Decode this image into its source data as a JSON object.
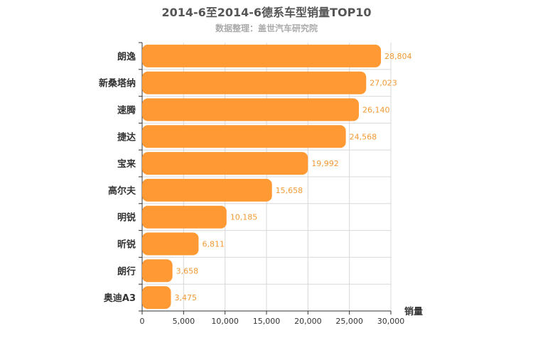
{
  "title": "2014-6至2014-6德系车型销量TOP10",
  "subtitle": "数据整理：盖世汽车研究院",
  "chart_data": {
    "type": "bar",
    "orientation": "horizontal",
    "title": "2014-6至2014-6德系车型销量TOP10",
    "subtitle": "数据整理：盖世汽车研究院",
    "categories": [
      "朗逸",
      "新桑塔纳",
      "速腾",
      "捷达",
      "宝来",
      "高尔夫",
      "明锐",
      "昕锐",
      "朗行",
      "奥迪A3"
    ],
    "values": [
      28804,
      27023,
      26140,
      24568,
      19992,
      15658,
      10185,
      6811,
      3658,
      3475
    ],
    "data_labels": [
      "28,804",
      "27,023",
      "26,140",
      "24,568",
      "19,992",
      "15,658",
      "10,185",
      "6,811",
      "3,658",
      "3,475"
    ],
    "xlabel": "销量",
    "ylabel": "",
    "xlim": [
      0,
      30000
    ],
    "ticks": [
      0,
      5000,
      10000,
      15000,
      20000,
      25000,
      30000
    ],
    "tick_labels": [
      "0",
      "5,000",
      "10,000",
      "15,000",
      "20,000",
      "25,000",
      "30,000"
    ],
    "grid": true,
    "bar_color": "#ff9933",
    "label_color": "#f29a33"
  }
}
